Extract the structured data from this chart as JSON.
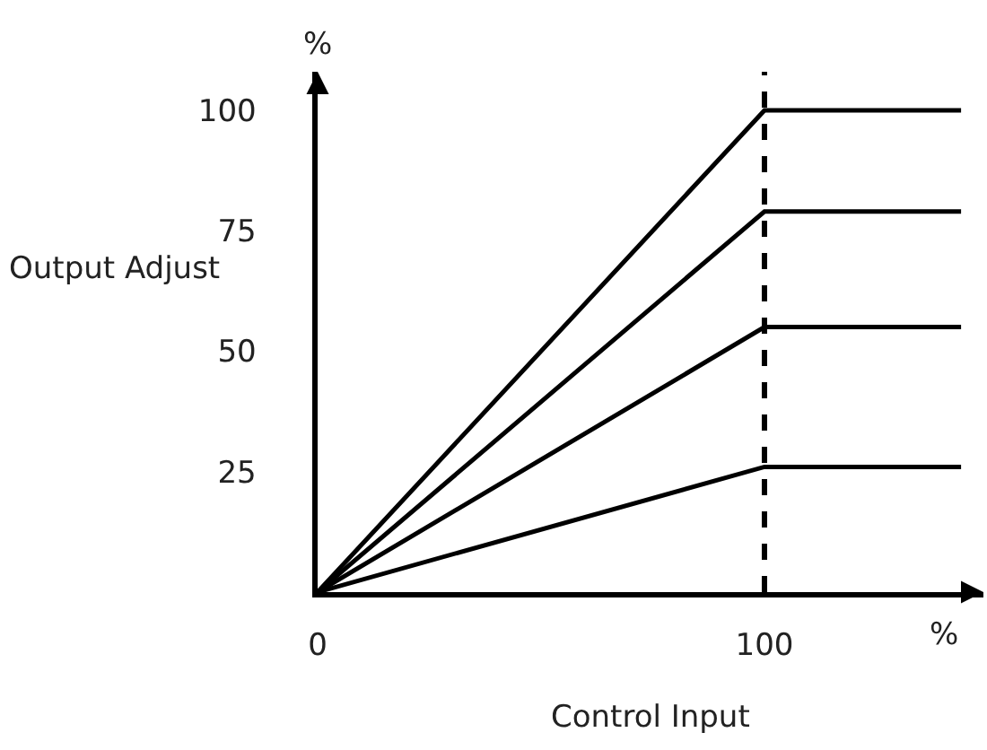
{
  "chart_data": {
    "type": "line",
    "xlabel": "Control Input",
    "ylabel": "Output Adjust",
    "x": [
      0,
      100,
      144
    ],
    "series": [
      {
        "color": "#000000",
        "values": [
          0,
          100,
          100
        ]
      },
      {
        "color": "#000000",
        "values": [
          0,
          79,
          79
        ]
      },
      {
        "color": "#000000",
        "values": [
          0,
          55,
          55
        ]
      },
      {
        "color": "#000000",
        "values": [
          0,
          26,
          26
        ]
      }
    ],
    "xlim": [
      0,
      149
    ],
    "ylim": [
      0,
      108
    ],
    "xticks": [
      0,
      100
    ],
    "yticks": [
      25,
      50,
      75,
      100
    ],
    "ref_lines": [
      {
        "axis": "x",
        "value": 100,
        "color": "#000000",
        "line_style": "dashed"
      }
    ],
    "annotations": [
      "%",
      "%"
    ],
    "grid": false,
    "legend": false,
    "marker": "none",
    "line_style": "solid"
  }
}
